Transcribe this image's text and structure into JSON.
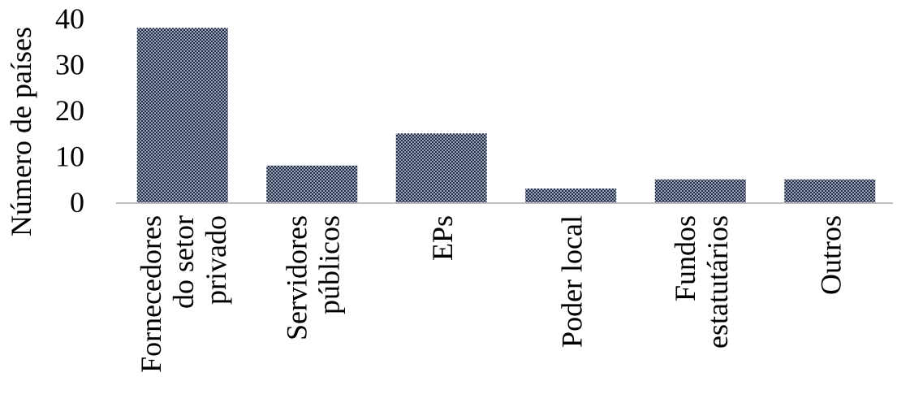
{
  "chart_data": {
    "type": "bar",
    "title": "",
    "xlabel": "",
    "ylabel": "Número de países",
    "ylim": [
      0,
      40
    ],
    "yticks": [
      "0",
      "10",
      "20",
      "30",
      "40"
    ],
    "grid": false,
    "legend": "none",
    "categories": [
      [
        "Fornecedores",
        "do setor",
        "privado"
      ],
      [
        "Servidores",
        "públicos"
      ],
      [
        "EPs"
      ],
      [
        "Poder local"
      ],
      [
        "Fundos",
        "estatutários"
      ],
      [
        "Outros"
      ]
    ],
    "values": [
      38,
      8,
      15,
      3,
      5,
      5
    ],
    "colors": {
      "bar_fill": "#1f2b4a",
      "bar_dot": "#ffffff",
      "axis": "#bfbfbf",
      "text": "#000000"
    }
  }
}
